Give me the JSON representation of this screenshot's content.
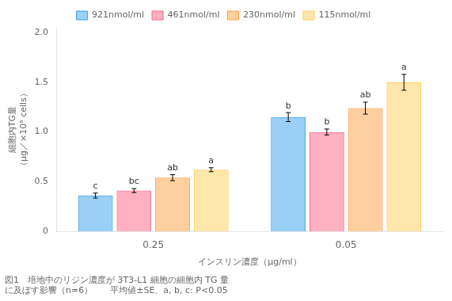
{
  "chart_data": {
    "type": "bar",
    "title": "図1　培地中のリジン濃度が 3T3-L1 細胞の細胞内 TG 量\nに及ぼす影響（n=6）　　平均値±SE、a, b, c: P<0.05",
    "xlabel": "インスリン濃度（μg/ml）",
    "ylabel": "細胞内TG量\n（μg／×10⁶ cells）",
    "categories": [
      "0.25",
      "0.05"
    ],
    "series": [
      {
        "name": "921nmol/ml",
        "values": [
          0.36,
          1.15
        ],
        "errors": [
          0.025,
          0.045
        ],
        "annotations": [
          "c",
          "b"
        ]
      },
      {
        "name": "461nmol/ml",
        "values": [
          0.41,
          1.0
        ],
        "errors": [
          0.02,
          0.03
        ],
        "annotations": [
          "bc",
          "b"
        ]
      },
      {
        "name": "230nmol/ml",
        "values": [
          0.54,
          1.24
        ],
        "errors": [
          0.03,
          0.06
        ],
        "annotations": [
          "ab",
          "ab"
        ]
      },
      {
        "name": "115nmol/ml",
        "values": [
          0.62,
          1.5
        ],
        "errors": [
          0.02,
          0.08
        ],
        "annotations": [
          "a",
          "a"
        ]
      }
    ],
    "ylim": [
      0,
      2.05
    ],
    "yticks": [
      0,
      0.5,
      {
        "value": 1,
        "label": "1.0"
      },
      1.5,
      {
        "value": 2,
        "label": "2.0"
      }
    ],
    "grid": false,
    "legend": "top"
  }
}
